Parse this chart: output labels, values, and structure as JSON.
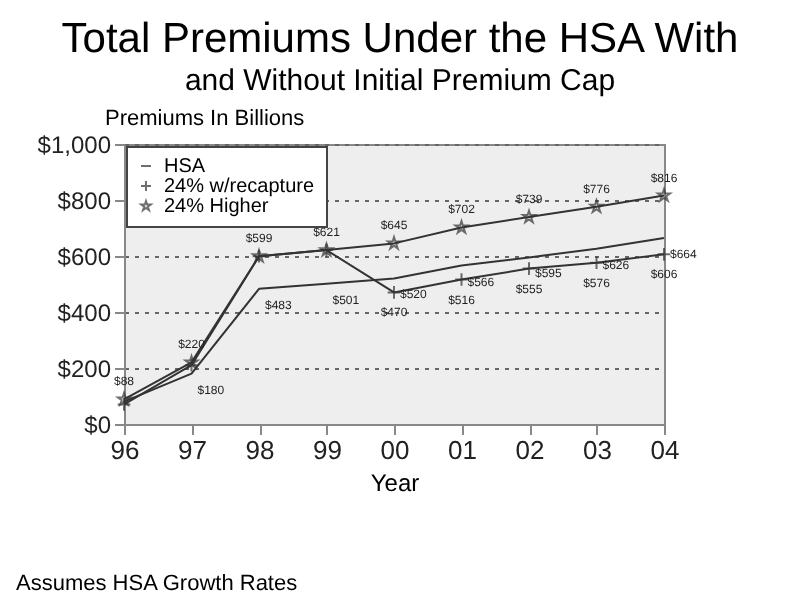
{
  "chart_data": {
    "type": "line",
    "title": "Total Premiums Under the HSA With",
    "subtitle": "and Without Initial Premium Cap",
    "xlabel": "Year",
    "ylabel": "Premiums In Billions",
    "categories": [
      "96",
      "97",
      "98",
      "99",
      "00",
      "01",
      "02",
      "03",
      "04"
    ],
    "series": [
      {
        "name": "HSA",
        "color": "#333333",
        "marker": "none",
        "values": [
          80,
          180,
          483,
          501,
          520,
          566,
          595,
          626,
          664
        ],
        "value_labels": [
          null,
          "$180",
          "$483",
          "$501",
          "$520",
          "$566",
          "$595",
          "$626",
          "$664"
        ]
      },
      {
        "name": "24% w/recapture",
        "color": "#333333",
        "marker": "cross",
        "values": [
          70,
          210,
          599,
          621,
          470,
          516,
          555,
          576,
          606
        ],
        "value_labels": [
          null,
          null,
          null,
          null,
          "$470",
          "$516",
          "$555",
          "$576",
          "$606"
        ]
      },
      {
        "name": "24% Higher",
        "color": "#333333",
        "marker": "star",
        "values": [
          88,
          220,
          599,
          621,
          645,
          702,
          739,
          776,
          816
        ],
        "value_labels": [
          "$88",
          "$220",
          "$599",
          "$621",
          "$645",
          "$702",
          "$739",
          "$776",
          "$816"
        ]
      }
    ],
    "ylim": [
      0,
      1000
    ],
    "yticks": [
      {
        "value": 0,
        "label": "$0"
      },
      {
        "value": 200,
        "label": "$200"
      },
      {
        "value": 400,
        "label": "$400"
      },
      {
        "value": 600,
        "label": "$600"
      },
      {
        "value": 800,
        "label": "$800"
      },
      {
        "value": 1000,
        "label": "$1,000"
      }
    ],
    "grid": "y",
    "legend": "top left",
    "annotations": [
      "Assumes HSA Growth Rates"
    ]
  }
}
